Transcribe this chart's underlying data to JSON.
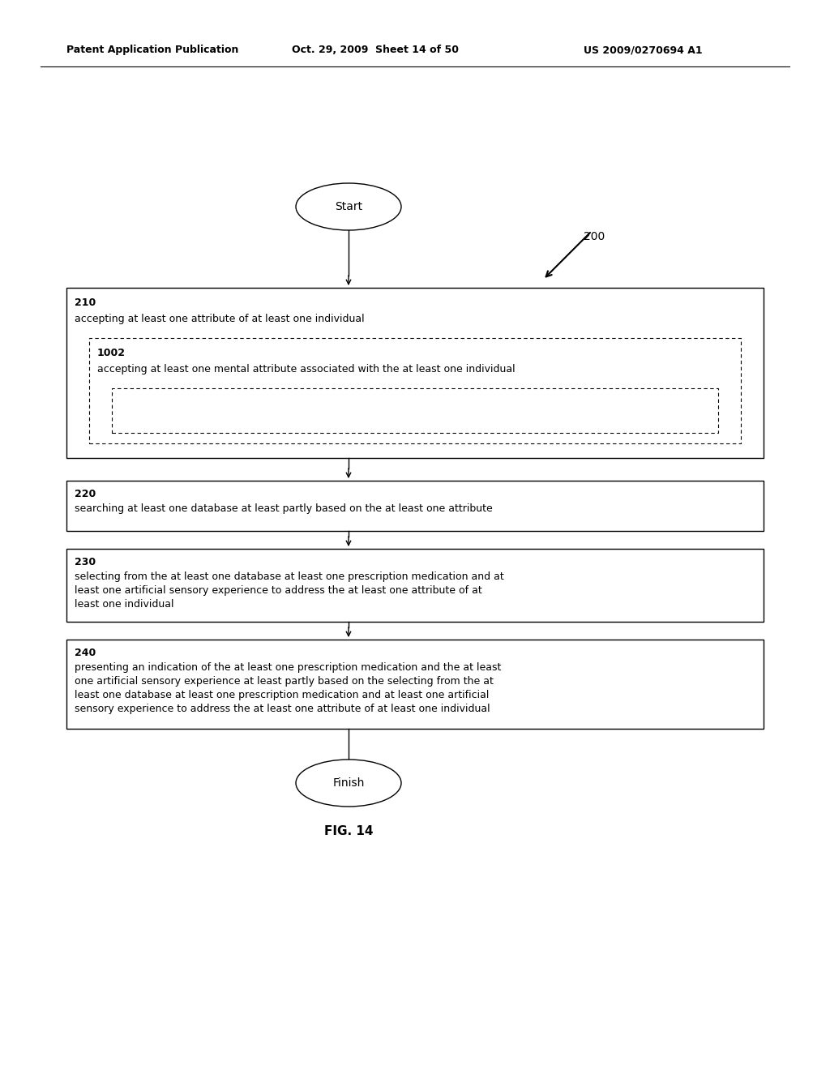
{
  "header_left": "Patent Application Publication",
  "header_mid": "Oct. 29, 2009  Sheet 14 of 50",
  "header_right": "US 2009/0270694 A1",
  "fig_label": "FIG. 14",
  "ref_number": "200",
  "start_label": "Start",
  "finish_label": "Finish",
  "background_color": "#ffffff",
  "line_color": "#000000",
  "text_color": "#000000",
  "header_fontsize": 9,
  "body_fontsize": 9,
  "caption_fontsize": 11
}
